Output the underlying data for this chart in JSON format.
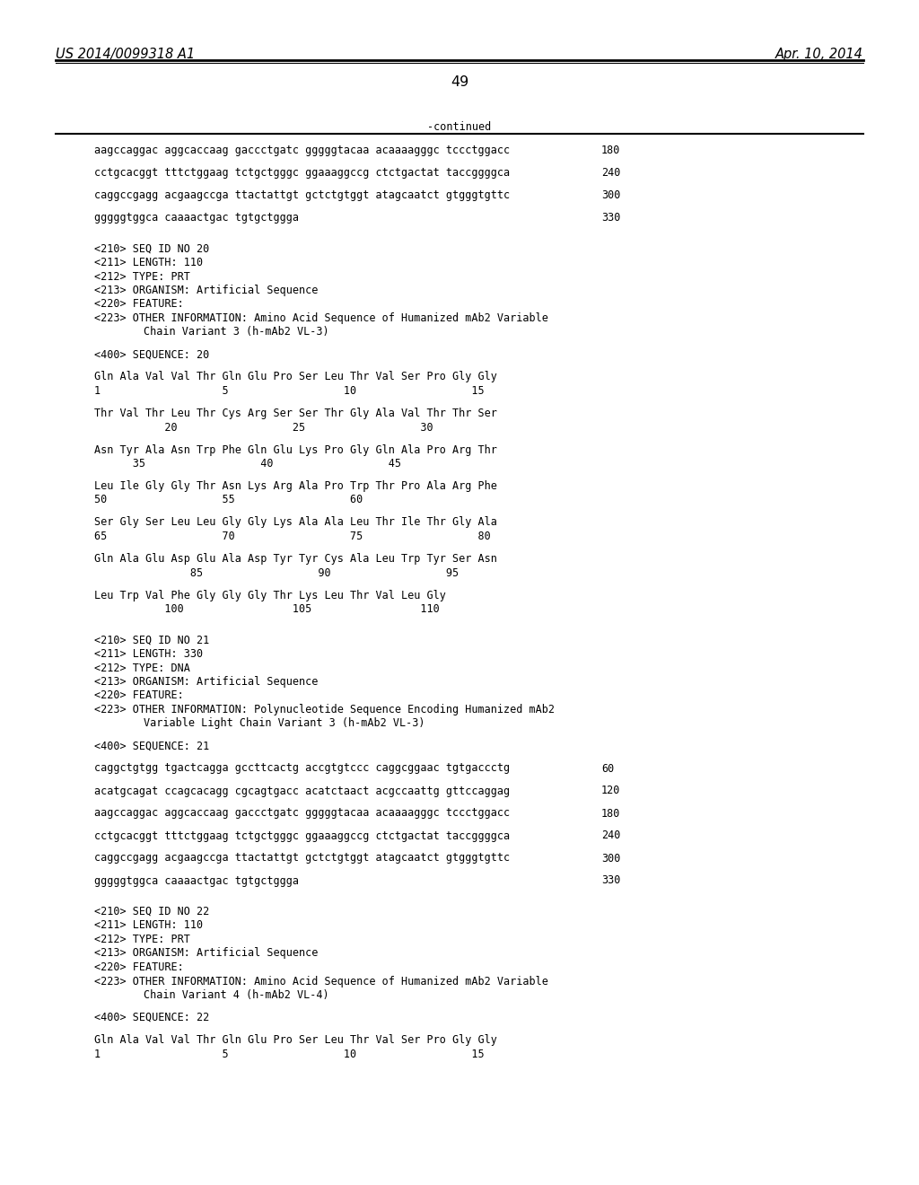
{
  "header_left": "US 2014/0099318 A1",
  "header_right": "Apr. 10, 2014",
  "page_number": "49",
  "continued_label": "-continued",
  "background_color": "#ffffff",
  "text_color": "#000000",
  "lines": [
    {
      "type": "seq_dna",
      "text": "aagccaggac aggcaccaag gaccctgatc gggggtacaa acaaaagggc tccctggacc",
      "number": "180"
    },
    {
      "type": "blank"
    },
    {
      "type": "seq_dna",
      "text": "cctgcacggt tttctggaag tctgctgggc ggaaaggccg ctctgactat taccggggca",
      "number": "240"
    },
    {
      "type": "blank"
    },
    {
      "type": "seq_dna",
      "text": "caggccgagg acgaagccga ttactattgt gctctgtggt atagcaatct gtgggtgttc",
      "number": "300"
    },
    {
      "type": "blank"
    },
    {
      "type": "seq_dna",
      "text": "gggggtggca caaaactgac tgtgctggga",
      "number": "330"
    },
    {
      "type": "blank"
    },
    {
      "type": "blank"
    },
    {
      "type": "meta",
      "text": "<210> SEQ ID NO 20"
    },
    {
      "type": "meta",
      "text": "<211> LENGTH: 110"
    },
    {
      "type": "meta",
      "text": "<212> TYPE: PRT"
    },
    {
      "type": "meta",
      "text": "<213> ORGANISM: Artificial Sequence"
    },
    {
      "type": "meta",
      "text": "<220> FEATURE:"
    },
    {
      "type": "meta",
      "text": "<223> OTHER INFORMATION: Amino Acid Sequence of Humanized mAb2 Variable"
    },
    {
      "type": "meta_indent",
      "text": "Chain Variant 3 (h-mAb2 VL-3)"
    },
    {
      "type": "blank"
    },
    {
      "type": "meta",
      "text": "<400> SEQUENCE: 20"
    },
    {
      "type": "blank"
    },
    {
      "type": "seq_aa",
      "text": "Gln Ala Val Val Thr Gln Glu Pro Ser Leu Thr Val Ser Pro Gly Gly"
    },
    {
      "type": "seq_num",
      "text": "1                   5                  10                  15"
    },
    {
      "type": "blank"
    },
    {
      "type": "seq_aa",
      "text": "Thr Val Thr Leu Thr Cys Arg Ser Ser Thr Gly Ala Val Thr Thr Ser"
    },
    {
      "type": "seq_num",
      "text": "           20                  25                  30"
    },
    {
      "type": "blank"
    },
    {
      "type": "seq_aa",
      "text": "Asn Tyr Ala Asn Trp Phe Gln Glu Lys Pro Gly Gln Ala Pro Arg Thr"
    },
    {
      "type": "seq_num",
      "text": "      35                  40                  45"
    },
    {
      "type": "blank"
    },
    {
      "type": "seq_aa",
      "text": "Leu Ile Gly Gly Thr Asn Lys Arg Ala Pro Trp Thr Pro Ala Arg Phe"
    },
    {
      "type": "seq_num",
      "text": "50                  55                  60"
    },
    {
      "type": "blank"
    },
    {
      "type": "seq_aa",
      "text": "Ser Gly Ser Leu Leu Gly Gly Lys Ala Ala Leu Thr Ile Thr Gly Ala"
    },
    {
      "type": "seq_num",
      "text": "65                  70                  75                  80"
    },
    {
      "type": "blank"
    },
    {
      "type": "seq_aa",
      "text": "Gln Ala Glu Asp Glu Ala Asp Tyr Tyr Cys Ala Leu Trp Tyr Ser Asn"
    },
    {
      "type": "seq_num",
      "text": "               85                  90                  95"
    },
    {
      "type": "blank"
    },
    {
      "type": "seq_aa",
      "text": "Leu Trp Val Phe Gly Gly Gly Thr Lys Leu Thr Val Leu Gly"
    },
    {
      "type": "seq_num",
      "text": "           100                 105                 110"
    },
    {
      "type": "blank"
    },
    {
      "type": "blank"
    },
    {
      "type": "meta",
      "text": "<210> SEQ ID NO 21"
    },
    {
      "type": "meta",
      "text": "<211> LENGTH: 330"
    },
    {
      "type": "meta",
      "text": "<212> TYPE: DNA"
    },
    {
      "type": "meta",
      "text": "<213> ORGANISM: Artificial Sequence"
    },
    {
      "type": "meta",
      "text": "<220> FEATURE:"
    },
    {
      "type": "meta",
      "text": "<223> OTHER INFORMATION: Polynucleotide Sequence Encoding Humanized mAb2"
    },
    {
      "type": "meta_indent",
      "text": "Variable Light Chain Variant 3 (h-mAb2 VL-3)"
    },
    {
      "type": "blank"
    },
    {
      "type": "meta",
      "text": "<400> SEQUENCE: 21"
    },
    {
      "type": "blank"
    },
    {
      "type": "seq_dna",
      "text": "caggctgtgg tgactcagga gccttcactg accgtgtccc caggcggaac tgtgaccctg",
      "number": "60"
    },
    {
      "type": "blank"
    },
    {
      "type": "seq_dna",
      "text": "acatgcagat ccagcacagg cgcagtgacc acatctaact acgccaattg gttccaggag",
      "number": "120"
    },
    {
      "type": "blank"
    },
    {
      "type": "seq_dna",
      "text": "aagccaggac aggcaccaag gaccctgatc gggggtacaa acaaaagggc tccctggacc",
      "number": "180"
    },
    {
      "type": "blank"
    },
    {
      "type": "seq_dna",
      "text": "cctgcacggt tttctggaag tctgctgggc ggaaaggccg ctctgactat taccggggca",
      "number": "240"
    },
    {
      "type": "blank"
    },
    {
      "type": "seq_dna",
      "text": "caggccgagg acgaagccga ttactattgt gctctgtggt atagcaatct gtgggtgttc",
      "number": "300"
    },
    {
      "type": "blank"
    },
    {
      "type": "seq_dna",
      "text": "gggggtggca caaaactgac tgtgctggga",
      "number": "330"
    },
    {
      "type": "blank"
    },
    {
      "type": "blank"
    },
    {
      "type": "meta",
      "text": "<210> SEQ ID NO 22"
    },
    {
      "type": "meta",
      "text": "<211> LENGTH: 110"
    },
    {
      "type": "meta",
      "text": "<212> TYPE: PRT"
    },
    {
      "type": "meta",
      "text": "<213> ORGANISM: Artificial Sequence"
    },
    {
      "type": "meta",
      "text": "<220> FEATURE:"
    },
    {
      "type": "meta",
      "text": "<223> OTHER INFORMATION: Amino Acid Sequence of Humanized mAb2 Variable"
    },
    {
      "type": "meta_indent",
      "text": "Chain Variant 4 (h-mAb2 VL-4)"
    },
    {
      "type": "blank"
    },
    {
      "type": "meta",
      "text": "<400> SEQUENCE: 22"
    },
    {
      "type": "blank"
    },
    {
      "type": "seq_aa",
      "text": "Gln Ala Val Val Thr Gln Glu Pro Ser Leu Thr Val Ser Pro Gly Gly"
    },
    {
      "type": "seq_num",
      "text": "1                   5                  10                  15"
    }
  ]
}
